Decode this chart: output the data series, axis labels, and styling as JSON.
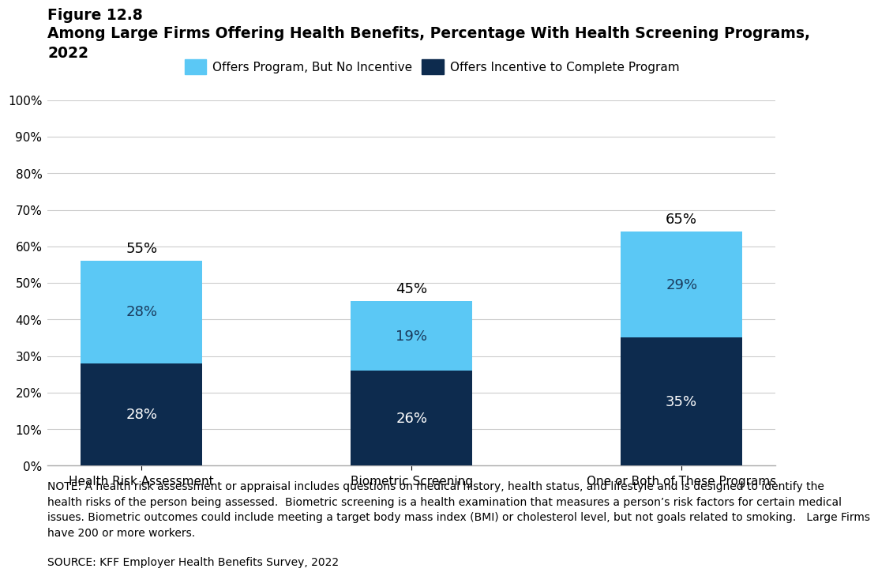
{
  "figure_label": "Figure 12.8",
  "title_line1": "Among Large Firms Offering Health Benefits, Percentage With Health Screening Programs,",
  "title_line2": "2022",
  "categories": [
    "Health Risk Assessment",
    "Biometric Screening",
    "One or Both of These Programs"
  ],
  "incentive_values": [
    28,
    26,
    35
  ],
  "no_incentive_values": [
    28,
    19,
    29
  ],
  "total_labels": [
    "55%",
    "45%",
    "65%"
  ],
  "incentive_labels": [
    "28%",
    "26%",
    "35%"
  ],
  "no_incentive_labels": [
    "28%",
    "19%",
    "29%"
  ],
  "color_incentive": "#0d2b4e",
  "color_no_incentive": "#5bc8f5",
  "legend_label_no_incentive": "Offers Program, But No Incentive",
  "legend_label_incentive": "Offers Incentive to Complete Program",
  "ylim": [
    0,
    100
  ],
  "yticks": [
    0,
    10,
    20,
    30,
    40,
    50,
    60,
    70,
    80,
    90,
    100
  ],
  "note_text": "NOTE: A health risk assessment or appraisal includes questions on medical history, health status, and lifestyle and is designed to identify the\nhealth risks of the person being assessed.  Biometric screening is a health examination that measures a person’s risk factors for certain medical\nissues. Biometric outcomes could include meeting a target body mass index (BMI) or cholesterol level, but not goals related to smoking.   Large Firms\nhave 200 or more workers.",
  "source_text": "SOURCE: KFF Employer Health Benefits Survey, 2022",
  "background_color": "#ffffff",
  "bar_width": 0.45,
  "title_fontsize": 13.5,
  "figure_label_fontsize": 13.5,
  "tick_fontsize": 11,
  "bar_label_fontsize": 13,
  "total_label_fontsize": 13,
  "note_fontsize": 10,
  "legend_fontsize": 11
}
